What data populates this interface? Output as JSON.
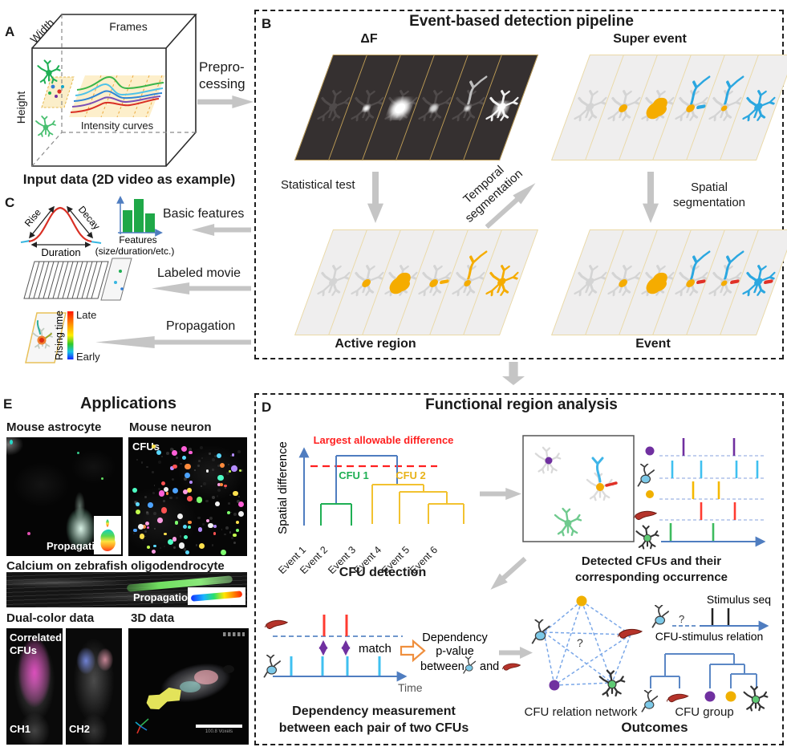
{
  "panelA": {
    "label": "A",
    "axis_width": "Width",
    "axis_frames": "Frames",
    "axis_height": "Height",
    "intensity_label": "Intensity curves",
    "caption": "Input data (2D video as example)",
    "preprocessing_line1": "Prepro-",
    "preprocessing_line2": "cessing"
  },
  "panelB": {
    "label": "B",
    "title": "Event-based detection pipeline",
    "delta_f": "ΔF",
    "super_event": "Super event",
    "statistical_test": "Statistical test",
    "temporal_line1": "Temporal",
    "temporal_line2": "segmentation",
    "spatial_line1": "Spatial",
    "spatial_line2": "segmentation",
    "active_region": "Active region",
    "event": "Event"
  },
  "panelC": {
    "label": "C",
    "rise": "Rise",
    "decay": "Decay",
    "duration": "Duration",
    "features": "Features",
    "features_sub": "(size/duration/etc.)",
    "basic_features": "Basic features",
    "labeled_movie": "Labeled movie",
    "propagation": "Propagation",
    "late": "Late",
    "early": "Early",
    "rising_time": "Rising time"
  },
  "panelD": {
    "label": "D",
    "title": "Functional region analysis",
    "largest_diff": "Largest allowable difference",
    "spatial_difference": "Spatial difference",
    "cfu1": "CFU 1",
    "cfu2": "CFU 2",
    "events": [
      "Event 1",
      "Event 2",
      "Event 3",
      "Event 4",
      "Event 5",
      "Event 6"
    ],
    "cfu_detection": "CFU detection",
    "detected_line1": "Detected CFUs and their",
    "detected_line2": "corresponding occurrence",
    "match": "match",
    "time": "Time",
    "dep_line1": "Dependency",
    "dep_line2": "p-value",
    "dep_line3_before": "between",
    "dep_line3_and": "and",
    "dep_caption_line1": "Dependency measurement",
    "dep_caption_line2": "between each pair of two CFUs",
    "question_mark": "?",
    "cfu_relation_network": "CFU relation network",
    "stimulus_seq": "Stimulus seq",
    "cfu_stimulus_relation": "CFU-stimulus relation",
    "cfu_group": "CFU group",
    "outcomes": "Outcomes"
  },
  "panelE": {
    "label": "E",
    "title": "Applications",
    "mouse_astrocyte": "Mouse astrocyte",
    "mouse_neuron": "Mouse neuron",
    "cfus": "CFUs",
    "propagation1": "Propagation",
    "zebrafish_caption": "Calcium on zebrafish oligodendrocyte",
    "propagation2": "Propagation",
    "dual_color": "Dual-color data",
    "three_d": "3D data",
    "correlated_line1": "Correlated",
    "correlated_line2": "CFUs",
    "ch1": "CH1",
    "ch2": "CH2",
    "scale_text": "100.8 Voxels"
  },
  "colors": {
    "event_blue": "#2ba7e0",
    "active_orange": "#f5ac00",
    "event_red": "#e03127",
    "cfu_green": "#1faf54",
    "dendro_blue": "#4f7dc0",
    "dendro_yellow": "#f2c230",
    "warning_red": "#ff1f1f",
    "arrow_gray": "#c5c5c5"
  }
}
